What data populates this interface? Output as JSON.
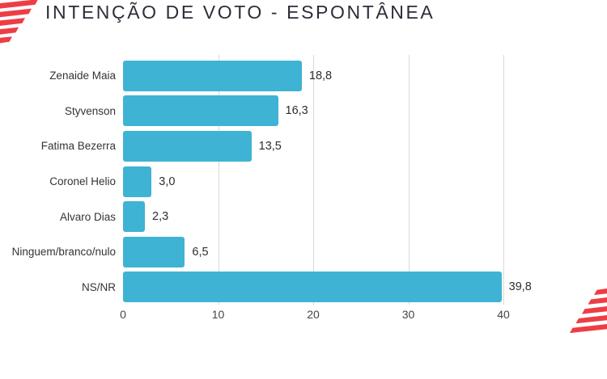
{
  "page": {
    "title": "INTENÇÃO DE VOTO - ESPONTÂNEA"
  },
  "colors": {
    "bar": "#3fb3d4",
    "brand_red": "#ee3d45",
    "title_text": "#2b2d39",
    "label_text": "#343434",
    "grid": "#d9d9d9"
  },
  "icons": {
    "top_left": "red-stripes-flag-logo",
    "bottom_right": "red-stripes-flag-logo"
  },
  "chart_data": {
    "type": "bar",
    "orientation": "horizontal",
    "title": "INTENÇÃO DE VOTO - ESPONTÂNEA",
    "categories": [
      "Zenaide Maia",
      "Styvenson",
      "Fatima Bezerra",
      "Coronel Helio",
      "Alvaro Dias",
      "Ninguem/branco/nulo",
      "NS/NR"
    ],
    "values": [
      18.8,
      16.3,
      13.5,
      3.0,
      2.3,
      6.5,
      39.8
    ],
    "value_labels": [
      "18,8",
      "16,3",
      "13,5",
      "3,0",
      "2,3",
      "6,5",
      "39,8"
    ],
    "x_ticks": [
      "0",
      "10",
      "20",
      "30",
      "40"
    ],
    "xlim": [
      0,
      40
    ],
    "grid": "vertical-only",
    "legend": "none"
  }
}
